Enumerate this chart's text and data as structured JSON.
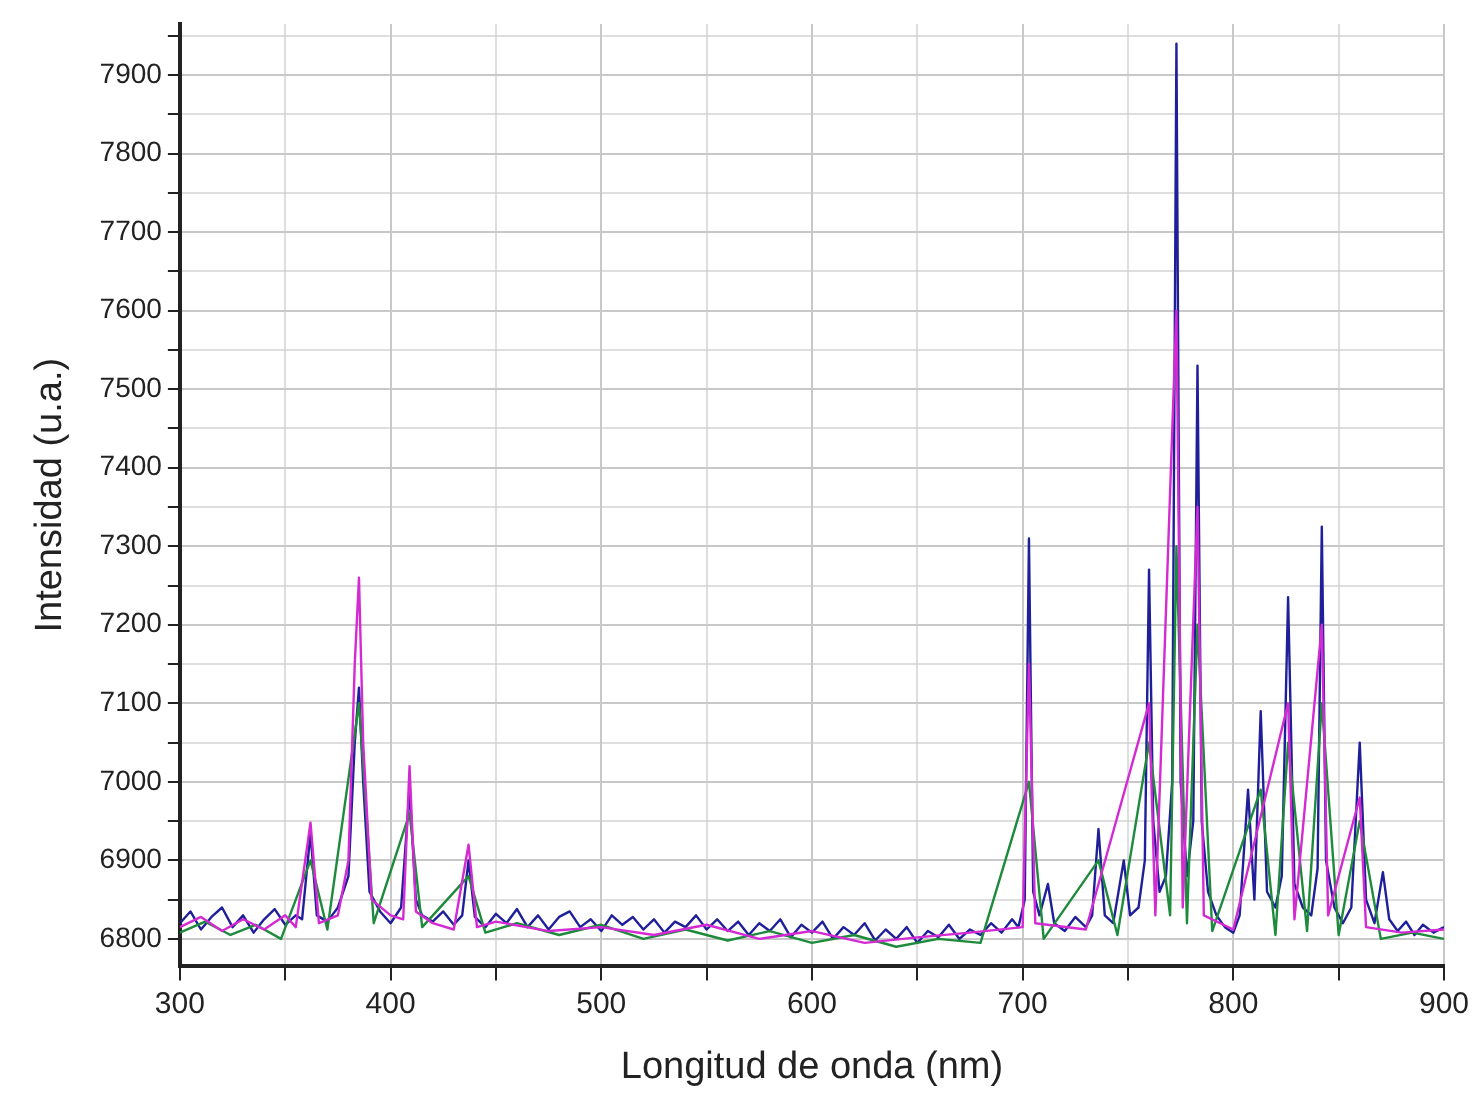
{
  "chart_data": {
    "type": "line",
    "xlabel": "Longitud de onda (nm)",
    "ylabel": "Intensidad (u.a.)",
    "xlim": [
      300,
      900
    ],
    "xticks": [
      300,
      {
        "value": 350,
        "label": null
      },
      400,
      {
        "value": 450,
        "label": null
      },
      500,
      {
        "value": 550,
        "label": null
      },
      600,
      {
        "value": 650,
        "label": null
      },
      700,
      {
        "value": 750,
        "label": null
      },
      800,
      {
        "value": 850,
        "label": null
      },
      900
    ],
    "ylim": [
      6765,
      7965
    ],
    "yticks": [
      6800,
      {
        "value": 6850,
        "label": null
      },
      6900,
      {
        "value": 6950,
        "label": null
      },
      7000,
      {
        "value": 7050,
        "label": null
      },
      7100,
      {
        "value": 7150,
        "label": null
      },
      7200,
      {
        "value": 7250,
        "label": null
      },
      7300,
      {
        "value": 7350,
        "label": null
      },
      7400,
      {
        "value": 7450,
        "label": null
      },
      7500,
      {
        "value": 7550,
        "label": null
      },
      7600,
      {
        "value": 7650,
        "label": null
      },
      7700,
      {
        "value": 7750,
        "label": null
      },
      7800,
      {
        "value": 7850,
        "label": null
      },
      7900,
      {
        "value": 7950,
        "label": null
      }
    ],
    "grid": true,
    "legend": false,
    "marker": "none",
    "line_style": "solid",
    "series": [
      {
        "color": "#d42ad4",
        "x": [
          300,
          310,
          320,
          330,
          340,
          350,
          355,
          362,
          366,
          375,
          380,
          383,
          385,
          387,
          391,
          400,
          406,
          409,
          412,
          420,
          430,
          437,
          441,
          450,
          475,
          500,
          525,
          550,
          575,
          600,
          625,
          650,
          675,
          700,
          703,
          706,
          730,
          760,
          763,
          773,
          776,
          783,
          786,
          800,
          826,
          829,
          842,
          845,
          860,
          863,
          880,
          900
        ],
        "values": [
          6815,
          6828,
          6810,
          6825,
          6812,
          6830,
          6815,
          6948,
          6820,
          6830,
          6900,
          7150,
          7260,
          7050,
          6850,
          6830,
          6825,
          7020,
          6835,
          6820,
          6812,
          6920,
          6815,
          6822,
          6810,
          6815,
          6805,
          6818,
          6800,
          6810,
          6795,
          6802,
          6808,
          6815,
          7150,
          6820,
          6812,
          7100,
          6830,
          7600,
          6840,
          7350,
          6830,
          6812,
          7100,
          6825,
          7200,
          6830,
          6980,
          6815,
          6808,
          6812
        ]
      },
      {
        "color": "#1e8a3c",
        "x": [
          300,
          312,
          324,
          336,
          348,
          362,
          370,
          385,
          392,
          409,
          415,
          437,
          445,
          460,
          480,
          500,
          520,
          540,
          560,
          580,
          600,
          620,
          640,
          660,
          680,
          703,
          710,
          736,
          745,
          760,
          770,
          773,
          778,
          783,
          790,
          813,
          820,
          826,
          835,
          842,
          850,
          860,
          870,
          885,
          900
        ],
        "values": [
          6808,
          6822,
          6805,
          6818,
          6800,
          6900,
          6812,
          7100,
          6820,
          6960,
          6815,
          6880,
          6808,
          6820,
          6805,
          6818,
          6800,
          6812,
          6798,
          6810,
          6795,
          6805,
          6790,
          6800,
          6795,
          7000,
          6800,
          6900,
          6805,
          7050,
          6830,
          7300,
          6820,
          7200,
          6810,
          6990,
          6805,
          7050,
          6810,
          7100,
          6805,
          6950,
          6800,
          6808,
          6800
        ]
      },
      {
        "color": "#1f1f9a",
        "x": [
          300,
          305,
          310,
          315,
          320,
          325,
          330,
          335,
          340,
          345,
          350,
          355,
          358,
          362,
          365,
          370,
          375,
          380,
          383,
          385,
          387,
          390,
          395,
          400,
          405,
          409,
          412,
          415,
          420,
          425,
          430,
          434,
          437,
          440,
          445,
          450,
          455,
          460,
          465,
          470,
          475,
          480,
          485,
          490,
          495,
          500,
          505,
          510,
          515,
          520,
          525,
          530,
          535,
          540,
          545,
          550,
          555,
          560,
          565,
          570,
          575,
          580,
          585,
          590,
          595,
          600,
          605,
          610,
          615,
          620,
          625,
          630,
          635,
          640,
          645,
          650,
          655,
          660,
          665,
          670,
          675,
          680,
          685,
          690,
          695,
          698,
          701,
          703,
          705,
          708,
          712,
          715,
          720,
          725,
          730,
          733,
          736,
          739,
          743,
          748,
          751,
          755,
          758,
          760,
          762,
          765,
          768,
          771,
          773,
          775,
          778,
          781,
          783,
          785,
          788,
          792,
          796,
          800,
          803,
          807,
          810,
          813,
          816,
          820,
          823,
          826,
          829,
          833,
          837,
          840,
          842,
          844,
          848,
          852,
          856,
          860,
          863,
          867,
          871,
          874,
          878,
          882,
          886,
          890,
          895,
          900
        ],
        "values": [
          6820,
          6835,
          6812,
          6828,
          6840,
          6815,
          6830,
          6808,
          6825,
          6838,
          6818,
          6830,
          6825,
          6935,
          6830,
          6822,
          6840,
          6880,
          7050,
          7120,
          7000,
          6860,
          6835,
          6820,
          6840,
          6990,
          6850,
          6830,
          6822,
          6835,
          6818,
          6830,
          6900,
          6828,
          6815,
          6832,
          6820,
          6838,
          6815,
          6830,
          6812,
          6828,
          6835,
          6815,
          6825,
          6810,
          6830,
          6818,
          6828,
          6812,
          6825,
          6808,
          6822,
          6815,
          6830,
          6812,
          6825,
          6810,
          6822,
          6805,
          6820,
          6810,
          6825,
          6802,
          6818,
          6808,
          6822,
          6800,
          6815,
          6805,
          6820,
          6798,
          6812,
          6800,
          6815,
          6795,
          6810,
          6802,
          6818,
          6800,
          6812,
          6805,
          6820,
          6808,
          6825,
          6815,
          6850,
          7310,
          6860,
          6830,
          6870,
          6820,
          6810,
          6828,
          6815,
          6830,
          6940,
          6830,
          6820,
          6900,
          6830,
          6840,
          6900,
          7270,
          6950,
          6860,
          6880,
          7000,
          7940,
          7000,
          6880,
          6950,
          7530,
          6950,
          6860,
          6830,
          6815,
          6808,
          6830,
          6990,
          6850,
          7090,
          6860,
          6840,
          6880,
          7235,
          6870,
          6840,
          6830,
          6890,
          7325,
          6900,
          6840,
          6820,
          6840,
          7050,
          6850,
          6820,
          6885,
          6825,
          6810,
          6822,
          6805,
          6818,
          6808,
          6815
        ]
      }
    ]
  }
}
